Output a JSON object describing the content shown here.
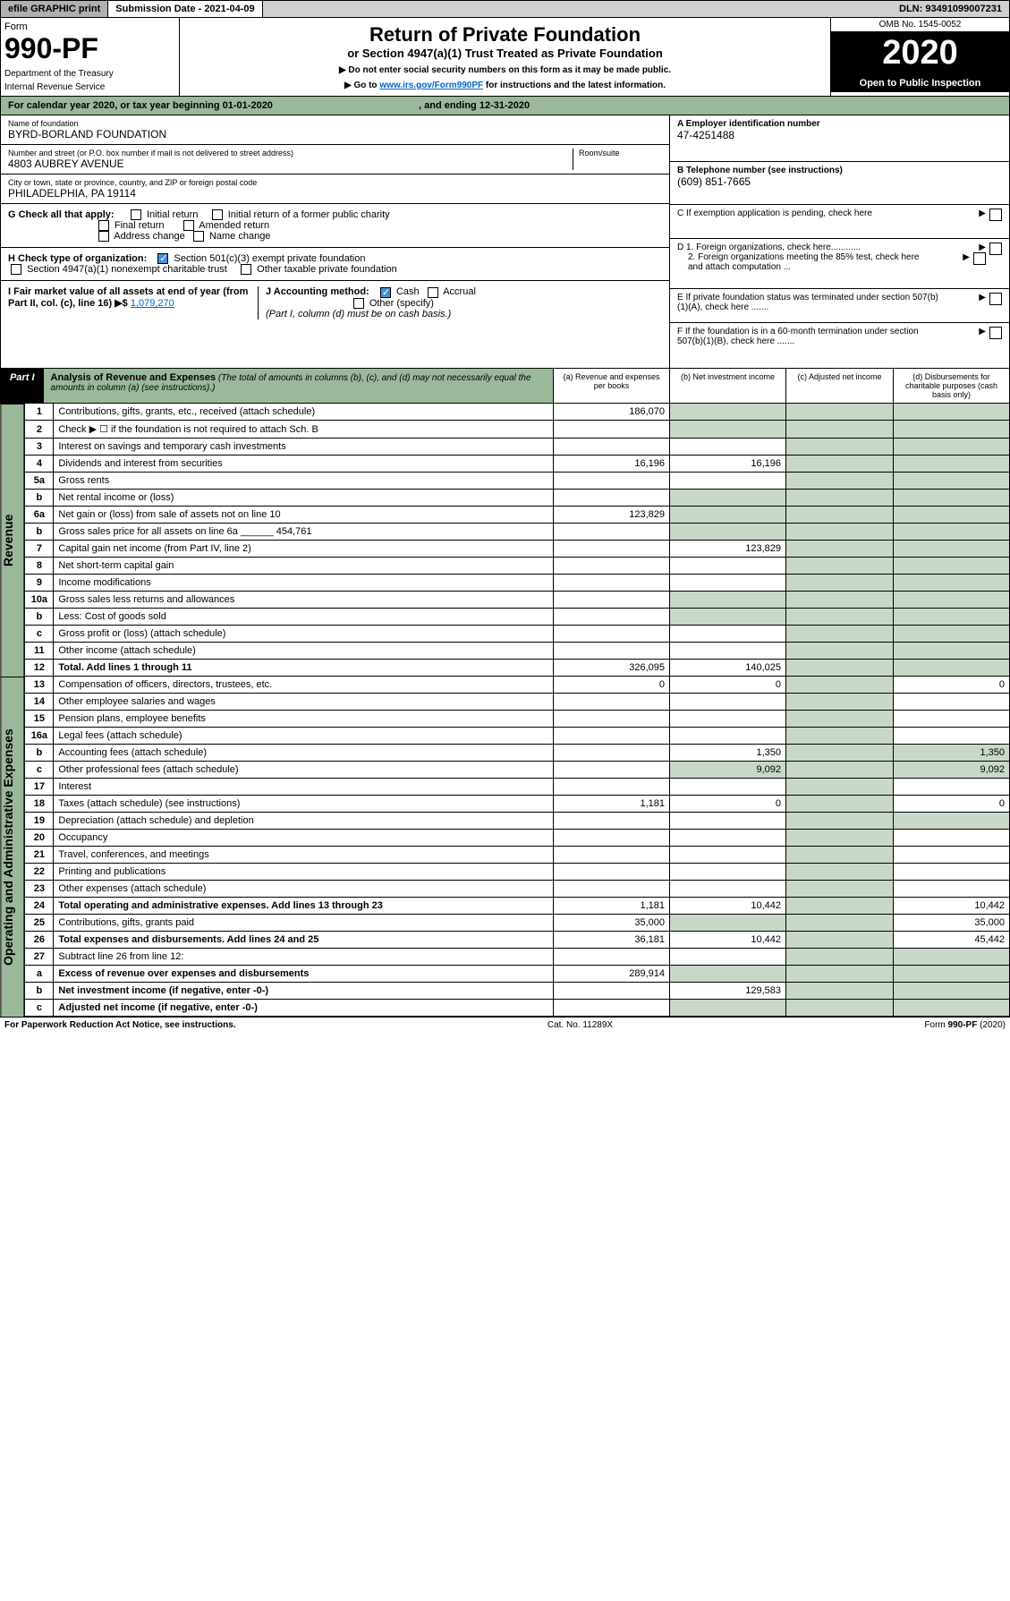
{
  "topbar": {
    "efile": "efile GRAPHIC print",
    "submission": "Submission Date - 2021-04-09",
    "dln": "DLN: 93491099007231"
  },
  "header": {
    "form_label": "Form",
    "form_number": "990-PF",
    "dept": "Department of the Treasury",
    "irs": "Internal Revenue Service",
    "title": "Return of Private Foundation",
    "subtitle": "or Section 4947(a)(1) Trust Treated as Private Foundation",
    "note1": "▶ Do not enter social security numbers on this form as it may be made public.",
    "note2_pre": "▶ Go to ",
    "note2_link": "www.irs.gov/Form990PF",
    "note2_post": " for instructions and the latest information.",
    "omb": "OMB No. 1545-0052",
    "year": "2020",
    "open": "Open to Public Inspection"
  },
  "cal_year": {
    "pre": "For calendar year 2020, or tax year beginning ",
    "begin": "01-01-2020",
    "mid": ", and ending ",
    "end": "12-31-2020"
  },
  "info": {
    "name_lbl": "Name of foundation",
    "name": "BYRD-BORLAND FOUNDATION",
    "addr_lbl": "Number and street (or P.O. box number if mail is not delivered to street address)",
    "addr": "4803 AUBREY AVENUE",
    "room_lbl": "Room/suite",
    "city_lbl": "City or town, state or province, country, and ZIP or foreign postal code",
    "city": "PHILADELPHIA, PA  19114",
    "a_lbl": "A Employer identification number",
    "ein": "47-4251488",
    "b_lbl": "B Telephone number (see instructions)",
    "phone": "(609) 851-7665",
    "c_lbl": "C If exemption application is pending, check here",
    "d1": "D 1. Foreign organizations, check here............",
    "d2": "2. Foreign organizations meeting the 85% test, check here and attach computation ...",
    "e_lbl": "E   If private foundation status was terminated under section 507(b)(1)(A), check here .......",
    "f_lbl": "F   If the foundation is in a 60-month termination under section 507(b)(1)(B), check here ......."
  },
  "checks": {
    "g_lbl": "G Check all that apply:",
    "initial": "Initial return",
    "initial_former": "Initial return of a former public charity",
    "final": "Final return",
    "amended": "Amended return",
    "addr_chg": "Address change",
    "name_chg": "Name change",
    "h_lbl": "H Check type of organization:",
    "h_501c3": "Section 501(c)(3) exempt private foundation",
    "h_4947": "Section 4947(a)(1) nonexempt charitable trust",
    "h_other": "Other taxable private foundation",
    "i_lbl": "I Fair market value of all assets at end of year (from Part II, col. (c), line 16) ▶$ ",
    "i_val": "1,079,270",
    "j_lbl": "J Accounting method:",
    "j_cash": "Cash",
    "j_accrual": "Accrual",
    "j_other": "Other (specify)",
    "j_note": "(Part I, column (d) must be on cash basis.)"
  },
  "part1": {
    "label": "Part I",
    "title": "Analysis of Revenue and Expenses",
    "note": " (The total of amounts in columns (b), (c), and (d) may not necessarily equal the amounts in column (a) (see instructions).)",
    "col_a": "(a)   Revenue and expenses per books",
    "col_b": "(b)   Net investment income",
    "col_c": "(c)   Adjusted net income",
    "col_d": "(d)   Disbursements for charitable purposes (cash basis only)"
  },
  "sections": {
    "revenue": "Revenue",
    "expenses": "Operating and Administrative Expenses"
  },
  "rows": [
    {
      "n": "1",
      "t": "Contributions, gifts, grants, etc., received (attach schedule)",
      "a": "186,070",
      "b": "",
      "c": "",
      "d": ""
    },
    {
      "n": "2",
      "t": "Check ▶ ☐ if the foundation is not required to attach Sch. B",
      "a": "",
      "b": "",
      "c": "",
      "d": ""
    },
    {
      "n": "3",
      "t": "Interest on savings and temporary cash investments",
      "a": "",
      "b": "",
      "c": "",
      "d": ""
    },
    {
      "n": "4",
      "t": "Dividends and interest from securities",
      "a": "16,196",
      "b": "16,196",
      "c": "",
      "d": ""
    },
    {
      "n": "5a",
      "t": "Gross rents",
      "a": "",
      "b": "",
      "c": "",
      "d": ""
    },
    {
      "n": "b",
      "t": "Net rental income or (loss)",
      "a": "",
      "b": "",
      "c": "",
      "d": ""
    },
    {
      "n": "6a",
      "t": "Net gain or (loss) from sale of assets not on line 10",
      "a": "123,829",
      "b": "",
      "c": "",
      "d": ""
    },
    {
      "n": "b",
      "t": "Gross sales price for all assets on line 6a ______ 454,761",
      "a": "",
      "b": "",
      "c": "",
      "d": ""
    },
    {
      "n": "7",
      "t": "Capital gain net income (from Part IV, line 2)",
      "a": "",
      "b": "123,829",
      "c": "",
      "d": ""
    },
    {
      "n": "8",
      "t": "Net short-term capital gain",
      "a": "",
      "b": "",
      "c": "",
      "d": ""
    },
    {
      "n": "9",
      "t": "Income modifications",
      "a": "",
      "b": "",
      "c": "",
      "d": ""
    },
    {
      "n": "10a",
      "t": "Gross sales less returns and allowances",
      "a": "",
      "b": "",
      "c": "",
      "d": ""
    },
    {
      "n": "b",
      "t": "Less: Cost of goods sold",
      "a": "",
      "b": "",
      "c": "",
      "d": ""
    },
    {
      "n": "c",
      "t": "Gross profit or (loss) (attach schedule)",
      "a": "",
      "b": "",
      "c": "",
      "d": ""
    },
    {
      "n": "11",
      "t": "Other income (attach schedule)",
      "a": "",
      "b": "",
      "c": "",
      "d": ""
    },
    {
      "n": "12",
      "t": "Total. Add lines 1 through 11",
      "a": "326,095",
      "b": "140,025",
      "c": "",
      "d": "",
      "bold": true
    }
  ],
  "exp_rows": [
    {
      "n": "13",
      "t": "Compensation of officers, directors, trustees, etc.",
      "a": "0",
      "b": "0",
      "c": "",
      "d": "0"
    },
    {
      "n": "14",
      "t": "Other employee salaries and wages",
      "a": "",
      "b": "",
      "c": "",
      "d": ""
    },
    {
      "n": "15",
      "t": "Pension plans, employee benefits",
      "a": "",
      "b": "",
      "c": "",
      "d": ""
    },
    {
      "n": "16a",
      "t": "Legal fees (attach schedule)",
      "a": "",
      "b": "",
      "c": "",
      "d": ""
    },
    {
      "n": "b",
      "t": "Accounting fees (attach schedule)",
      "a": "",
      "b": "1,350",
      "c": "",
      "d": "1,350"
    },
    {
      "n": "c",
      "t": "Other professional fees (attach schedule)",
      "a": "",
      "b": "9,092",
      "c": "",
      "d": "9,092"
    },
    {
      "n": "17",
      "t": "Interest",
      "a": "",
      "b": "",
      "c": "",
      "d": ""
    },
    {
      "n": "18",
      "t": "Taxes (attach schedule) (see instructions)",
      "a": "1,181",
      "b": "0",
      "c": "",
      "d": "0"
    },
    {
      "n": "19",
      "t": "Depreciation (attach schedule) and depletion",
      "a": "",
      "b": "",
      "c": "",
      "d": ""
    },
    {
      "n": "20",
      "t": "Occupancy",
      "a": "",
      "b": "",
      "c": "",
      "d": ""
    },
    {
      "n": "21",
      "t": "Travel, conferences, and meetings",
      "a": "",
      "b": "",
      "c": "",
      "d": ""
    },
    {
      "n": "22",
      "t": "Printing and publications",
      "a": "",
      "b": "",
      "c": "",
      "d": ""
    },
    {
      "n": "23",
      "t": "Other expenses (attach schedule)",
      "a": "",
      "b": "",
      "c": "",
      "d": ""
    },
    {
      "n": "24",
      "t": "Total operating and administrative expenses. Add lines 13 through 23",
      "a": "1,181",
      "b": "10,442",
      "c": "",
      "d": "10,442",
      "bold": true
    },
    {
      "n": "25",
      "t": "Contributions, gifts, grants paid",
      "a": "35,000",
      "b": "",
      "c": "",
      "d": "35,000"
    },
    {
      "n": "26",
      "t": "Total expenses and disbursements. Add lines 24 and 25",
      "a": "36,181",
      "b": "10,442",
      "c": "",
      "d": "45,442",
      "bold": true
    },
    {
      "n": "27",
      "t": "Subtract line 26 from line 12:",
      "a": "",
      "b": "",
      "c": "",
      "d": ""
    },
    {
      "n": "a",
      "t": "Excess of revenue over expenses and disbursements",
      "a": "289,914",
      "b": "",
      "c": "",
      "d": "",
      "bold": true
    },
    {
      "n": "b",
      "t": "Net investment income (if negative, enter -0-)",
      "a": "",
      "b": "129,583",
      "c": "",
      "d": "",
      "bold": true
    },
    {
      "n": "c",
      "t": "Adjusted net income (if negative, enter -0-)",
      "a": "",
      "b": "",
      "c": "",
      "d": "",
      "bold": true
    }
  ],
  "footer": {
    "left": "For Paperwork Reduction Act Notice, see instructions.",
    "mid": "Cat. No. 11289X",
    "right": "Form 990-PF (2020)"
  },
  "style": {
    "green": "#9bb89b",
    "shade": "#c8d8c8",
    "link": "#0066cc"
  }
}
